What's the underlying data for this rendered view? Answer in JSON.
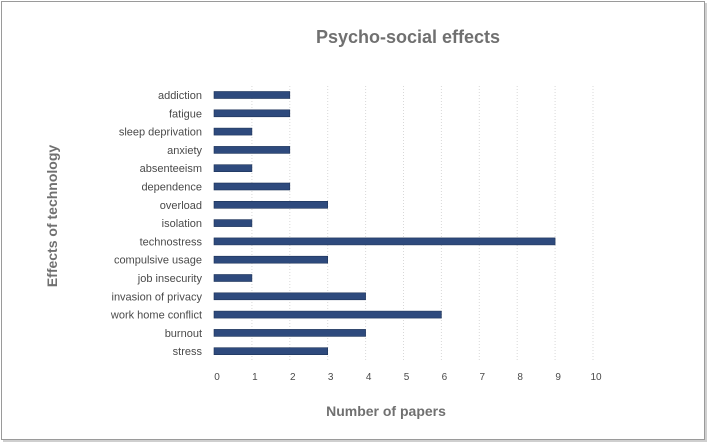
{
  "chart_data": {
    "type": "bar",
    "orientation": "horizontal",
    "title": "Psycho-social effects",
    "xlabel": "Number of papers",
    "ylabel": "Effects of technology",
    "xlim": [
      0,
      10
    ],
    "xticks": [
      0,
      1,
      2,
      3,
      4,
      5,
      6,
      7,
      8,
      9,
      10
    ],
    "grid": "vertical",
    "bar_color": "#2e4a7d",
    "categories": [
      "addiction",
      "fatigue",
      "sleep deprivation",
      "anxiety",
      "absenteeism",
      "dependence",
      "overload",
      "isolation",
      "technostress",
      "compulsive usage",
      "job insecurity",
      "invasion of privacy",
      "work home conflict",
      "burnout",
      "stress"
    ],
    "values": [
      2,
      2,
      1,
      2,
      1,
      2,
      3,
      1,
      9,
      3,
      1,
      4,
      6,
      4,
      3
    ]
  }
}
